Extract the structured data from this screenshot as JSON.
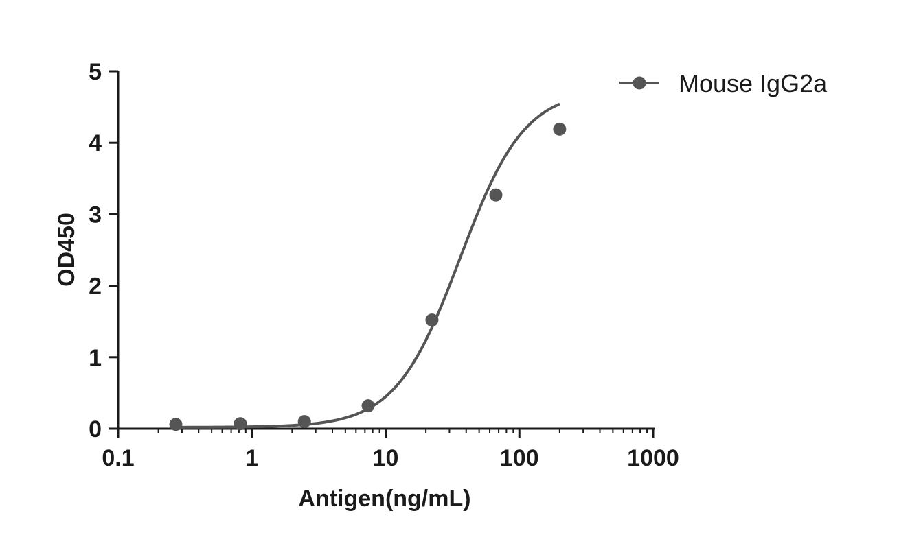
{
  "chart_data": {
    "type": "scatter",
    "title": "",
    "xlabel": "Antigen(ng/mL)",
    "ylabel": "OD450",
    "x_scale": "log",
    "xlim": [
      0.1,
      1000
    ],
    "ylim": [
      0,
      5
    ],
    "x_ticks": [
      0.1,
      1,
      10,
      100,
      1000
    ],
    "x_tick_labels": [
      "0.1",
      "1",
      "10",
      "100",
      "1000"
    ],
    "y_ticks": [
      0,
      1,
      2,
      3,
      4,
      5
    ],
    "y_tick_labels": [
      "0",
      "1",
      "2",
      "3",
      "4",
      "5"
    ],
    "grid": false,
    "legend_position": "top-right",
    "series": [
      {
        "name": "Mouse IgG2a",
        "color": "#555555",
        "points": [
          {
            "x": 0.27,
            "y": 0.06
          },
          {
            "x": 0.82,
            "y": 0.07
          },
          {
            "x": 2.47,
            "y": 0.1
          },
          {
            "x": 7.4,
            "y": 0.32
          },
          {
            "x": 22.2,
            "y": 1.52
          },
          {
            "x": 66.7,
            "y": 3.27
          },
          {
            "x": 200,
            "y": 4.19
          }
        ]
      }
    ]
  }
}
